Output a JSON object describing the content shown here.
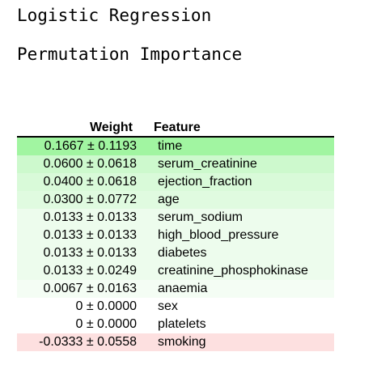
{
  "model_title": "Logistic Regression",
  "section_title": "Permutation Importance",
  "table": {
    "headers": {
      "weight": "Weight",
      "feature": "Feature"
    },
    "rows": [
      {
        "weight": "0.1667 ± 0.1193",
        "feature": "time",
        "color": "#a1f5a1"
      },
      {
        "weight": "0.0600 ± 0.0618",
        "feature": "serum_creatinine",
        "color": "#cdf9cd"
      },
      {
        "weight": "0.0400 ± 0.0618",
        "feature": "ejection_fraction",
        "color": "#d9fad9"
      },
      {
        "weight": "0.0300 ± 0.0772",
        "feature": "age",
        "color": "#e0fbe0"
      },
      {
        "weight": "0.0133 ± 0.0133",
        "feature": "serum_sodium",
        "color": "#edfced"
      },
      {
        "weight": "0.0133 ± 0.0133",
        "feature": "high_blood_pressure",
        "color": "#edfced"
      },
      {
        "weight": "0.0133 ± 0.0133",
        "feature": "diabetes",
        "color": "#edfced"
      },
      {
        "weight": "0.0133 ± 0.0249",
        "feature": "creatinine_phosphokinase",
        "color": "#edfced"
      },
      {
        "weight": "0.0067 ± 0.0163",
        "feature": "anaemia",
        "color": "#f4fdf4"
      },
      {
        "weight": "0 ± 0.0000",
        "feature": "sex",
        "color": "#ffffff"
      },
      {
        "weight": "0 ± 0.0000",
        "feature": "platelets",
        "color": "#ffffff"
      },
      {
        "weight": "-0.0333 ± 0.0558",
        "feature": "smoking",
        "color": "#fde0e0"
      }
    ]
  }
}
